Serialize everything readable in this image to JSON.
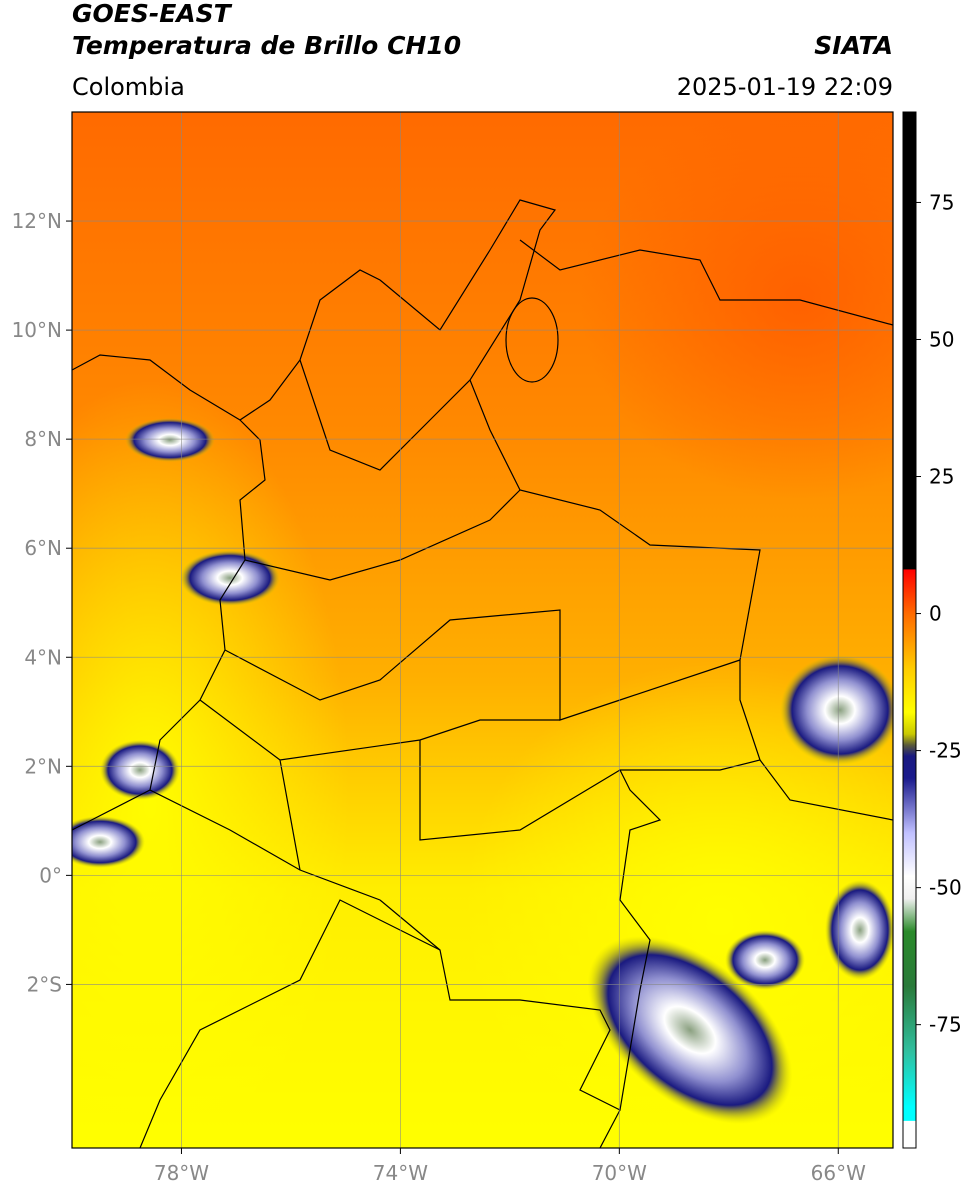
{
  "header": {
    "title": "GOES-EAST",
    "subtitle": "Temperatura de Brillo CH10",
    "source": "SIATA",
    "region": "Colombia",
    "datetime": "2025-01-19 22:09"
  },
  "map": {
    "lonlim": [
      -80,
      -65
    ],
    "latlim": [
      -5,
      14
    ],
    "lonticks": [
      {
        "value": -78,
        "label": "78°W"
      },
      {
        "value": -74,
        "label": "74°W"
      },
      {
        "value": -70,
        "label": "70°W"
      },
      {
        "value": -66,
        "label": "66°W"
      }
    ],
    "latticks": [
      {
        "value": 12,
        "label": "12°N"
      },
      {
        "value": 10,
        "label": "10°N"
      },
      {
        "value": 8,
        "label": "8°N"
      },
      {
        "value": 6,
        "label": "6°N"
      },
      {
        "value": 4,
        "label": "4°N"
      },
      {
        "value": 2,
        "label": "2°N"
      },
      {
        "value": 0,
        "label": "0°"
      },
      {
        "value": -2,
        "label": "2°S"
      }
    ],
    "grid": true
  },
  "colorbar": {
    "lim": [
      -97.5,
      91.5
    ],
    "ticks": [
      75,
      50,
      25,
      0,
      -25,
      -50,
      -75
    ],
    "stops": [
      {
        "value": 91.5,
        "color": "#000000"
      },
      {
        "value": 8.1,
        "color": "#000000"
      },
      {
        "value": 8,
        "color": "#ff0000"
      },
      {
        "value": 0,
        "color": "#ff6a00"
      },
      {
        "value": -10,
        "color": "#ffcc00"
      },
      {
        "value": -18,
        "color": "#ffff00"
      },
      {
        "value": -22,
        "color": "#c8c800"
      },
      {
        "value": -24,
        "color": "#5a5a3a"
      },
      {
        "value": -26,
        "color": "#1a1a80"
      },
      {
        "value": -30,
        "color": "#1a1a8c"
      },
      {
        "value": -40,
        "color": "#c0c0ff"
      },
      {
        "value": -48,
        "color": "#ffffff"
      },
      {
        "value": -52,
        "color": "#f0f0f0"
      },
      {
        "value": -58,
        "color": "#2a8a2a"
      },
      {
        "value": -68,
        "color": "#2a7a3a"
      },
      {
        "value": -80,
        "color": "#30c0a0"
      },
      {
        "value": -90,
        "color": "#00ffff"
      },
      {
        "value": -92.5,
        "color": "#00ffff"
      },
      {
        "value": -92.6,
        "color": "#ffffff"
      },
      {
        "value": -97.5,
        "color": "#ffffff"
      }
    ]
  }
}
